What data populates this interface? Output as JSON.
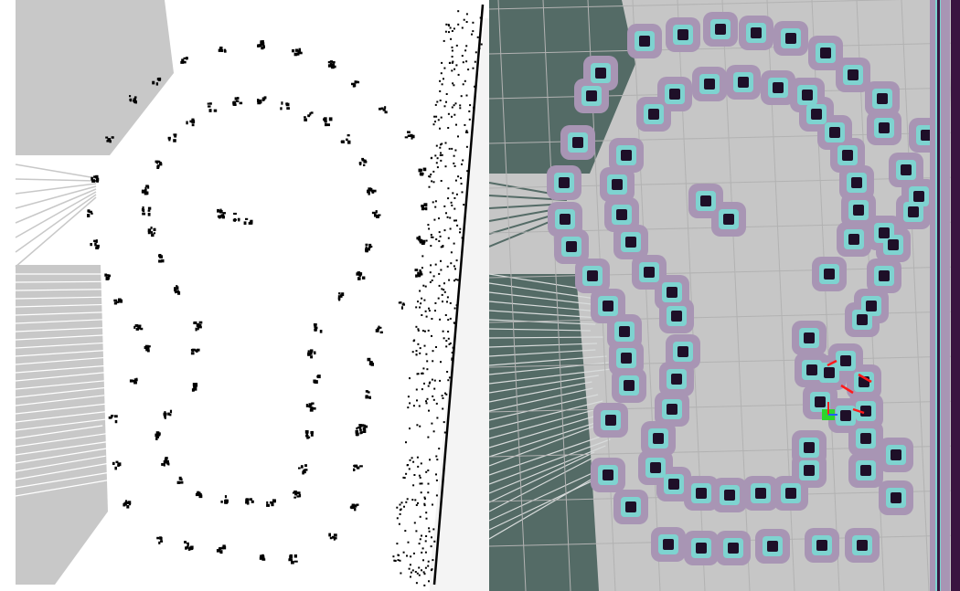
{
  "left_map": {
    "colors": {
      "free": "#ffffff",
      "unknown": "#c8c8c8",
      "occupied": "#000000"
    }
  },
  "right_map": {
    "colors": {
      "free": "#c6c6c6",
      "unknown": "#546b66",
      "grid": "#b2b2b2",
      "obstacle": "#1e0f28",
      "inflation_inner": "#7ed3d0",
      "inflation_outer": "#a895b4",
      "wall_strip": "#3a1440",
      "robot_path": "#ff1a1a"
    }
  }
}
